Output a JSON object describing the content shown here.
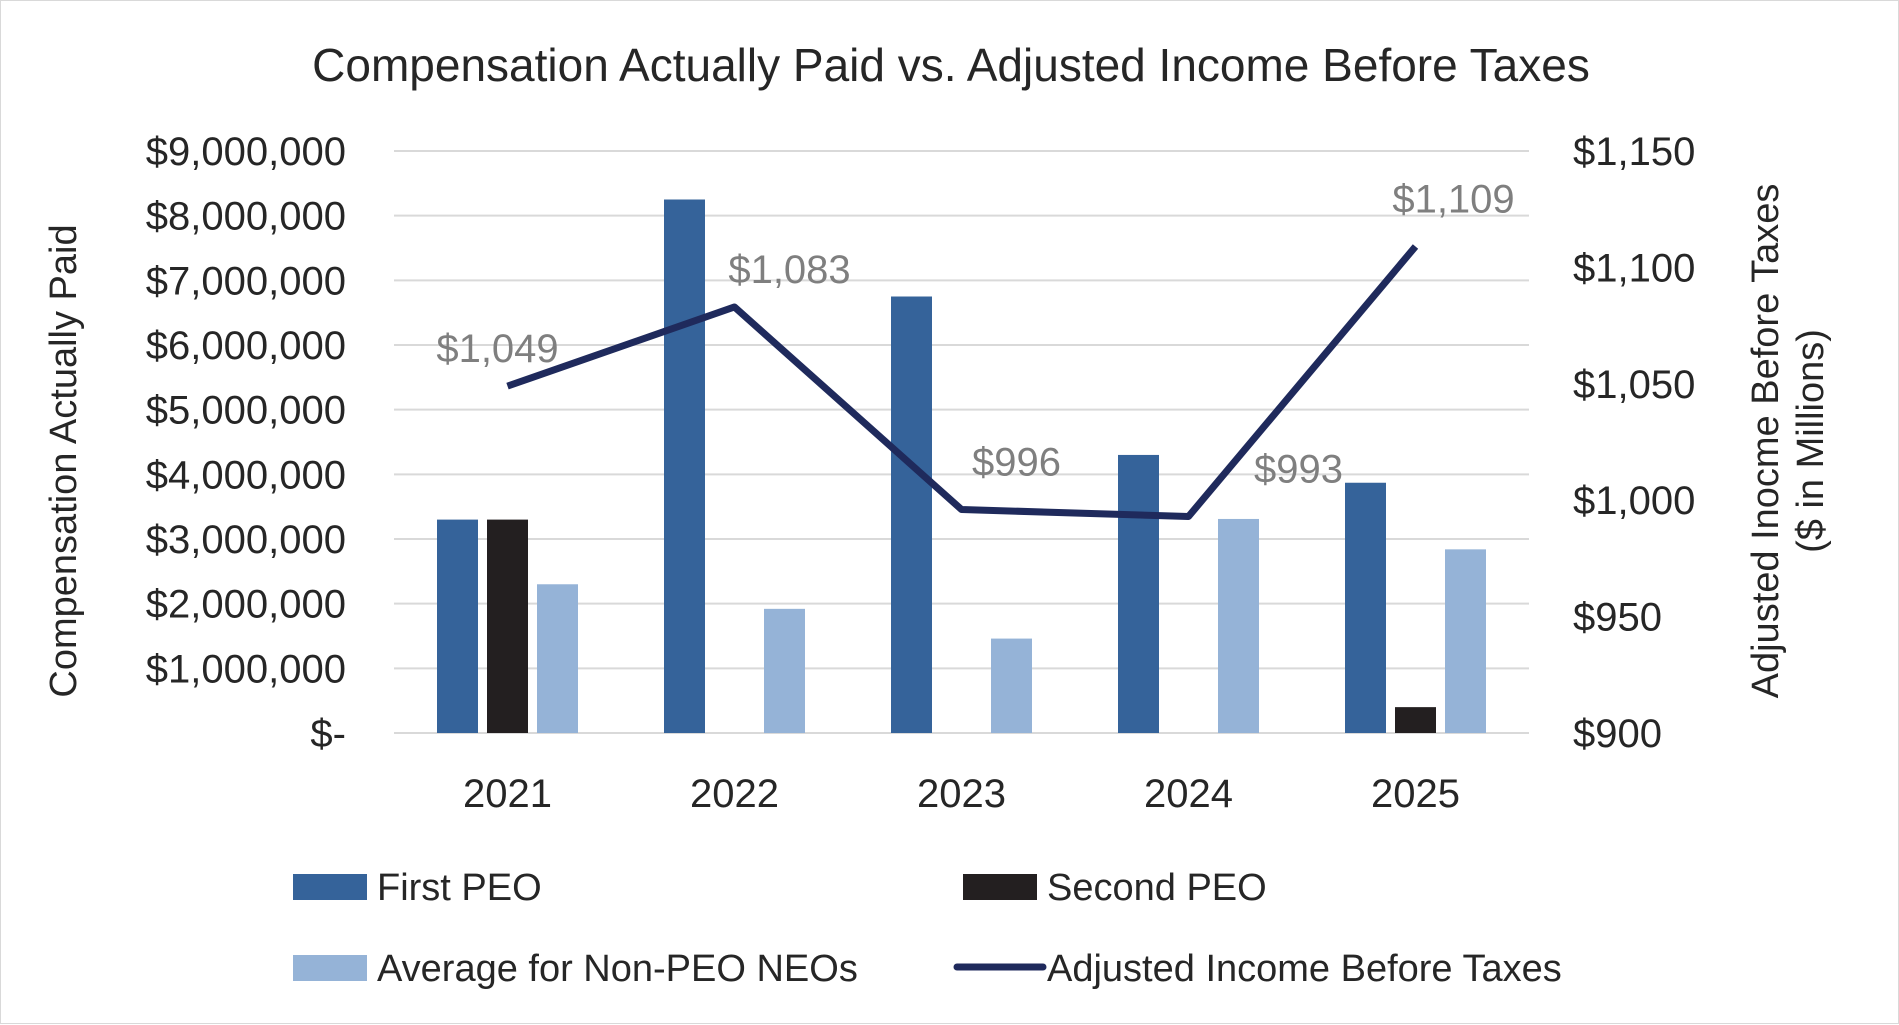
{
  "chart_data": {
    "type": "bar",
    "title": "Compensation Actually Paid vs. Adjusted Income Before Taxes",
    "categories": [
      "2021",
      "2022",
      "2023",
      "2024",
      "2025"
    ],
    "series": [
      {
        "name": "First PEO",
        "kind": "bar",
        "axis": "left",
        "color": "#35639a",
        "values": [
          3300000,
          8250000,
          6750000,
          4300000,
          3870000
        ]
      },
      {
        "name": "Second PEO",
        "kind": "bar",
        "axis": "left",
        "color": "#231f20",
        "values": [
          3300000,
          null,
          null,
          null,
          400000
        ]
      },
      {
        "name": "Average for Non-PEO NEOs",
        "kind": "bar",
        "axis": "left",
        "color": "#95b3d7",
        "values": [
          2300000,
          1920000,
          1460000,
          3310000,
          2840000
        ]
      },
      {
        "name": "Adjusted Income Before Taxes",
        "kind": "line",
        "axis": "right",
        "color": "#1f2a5c",
        "values": [
          1049,
          1083,
          996,
          993,
          1109
        ],
        "labels": [
          "$1,049",
          "$1,083",
          "$996",
          "$993",
          "$1,109"
        ]
      }
    ],
    "y_left": {
      "label": "Compensation Actually Paid",
      "range": [
        0,
        9000000
      ],
      "ticks": [
        {
          "value": 0,
          "label": "$-"
        },
        {
          "value": 1000000,
          "label": "$1,000,000"
        },
        {
          "value": 2000000,
          "label": "$2,000,000"
        },
        {
          "value": 3000000,
          "label": "$3,000,000"
        },
        {
          "value": 4000000,
          "label": "$4,000,000"
        },
        {
          "value": 5000000,
          "label": "$5,000,000"
        },
        {
          "value": 6000000,
          "label": "$6,000,000"
        },
        {
          "value": 7000000,
          "label": "$7,000,000"
        },
        {
          "value": 8000000,
          "label": "$8,000,000"
        },
        {
          "value": 9000000,
          "label": "$9,000,000"
        }
      ]
    },
    "y_right": {
      "label_line1": "Adjusted Inocme Before Taxes",
      "label_line2": "($ in Millions)",
      "range": [
        900,
        1150
      ],
      "ticks": [
        {
          "value": 900,
          "label": "$900"
        },
        {
          "value": 950,
          "label": "$950"
        },
        {
          "value": 1000,
          "label": "$1,000"
        },
        {
          "value": 1050,
          "label": "$1,050"
        },
        {
          "value": 1100,
          "label": "$1,100"
        },
        {
          "value": 1150,
          "label": "$1,150"
        }
      ]
    },
    "grid": true,
    "legend": "bottom"
  }
}
